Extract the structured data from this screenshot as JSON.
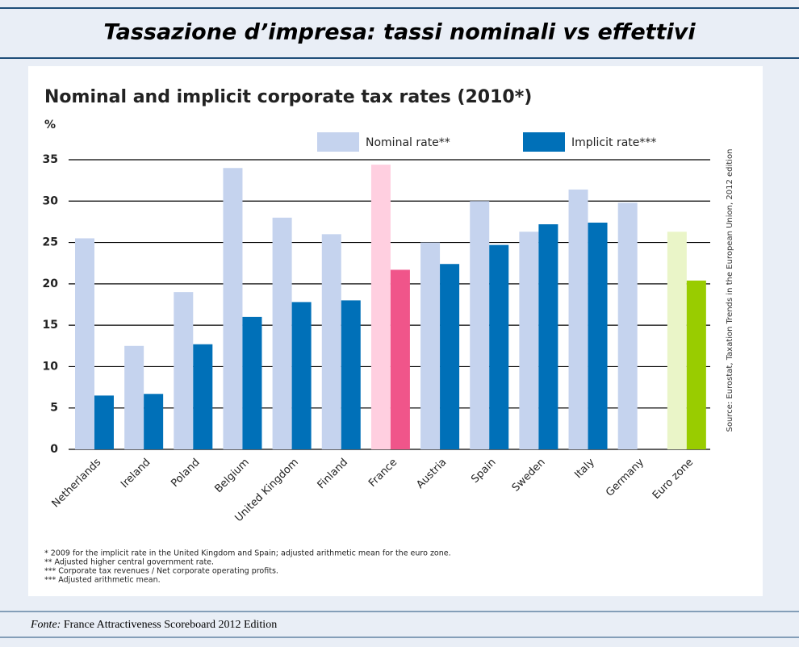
{
  "header": {
    "title": "Tassazione d’impresa: tassi nominali vs effettivi"
  },
  "footer": {
    "label": "Fonte:",
    "text": "France Attractiveness Scoreboard 2012 Edition"
  },
  "chart_data": {
    "type": "bar",
    "title": "Nominal and implicit corporate tax rates (2010*)",
    "y_label": "%",
    "source": "Source: Eurostat, Taxation Trends in the European Union, 2012 edition",
    "categories": [
      "Netherlands",
      "Ireland",
      "Poland",
      "Belgium",
      "United Kingdom",
      "Finland",
      "France",
      "Austria",
      "Spain",
      "Sweden",
      "Italy",
      "Germany",
      "Euro zone"
    ],
    "series": [
      {
        "name": "Nominal rate**",
        "color": "#c5d3ee",
        "colors": [
          "#c5d3ee",
          "#c5d3ee",
          "#c5d3ee",
          "#c5d3ee",
          "#c5d3ee",
          "#c5d3ee",
          "#ffcfe0",
          "#c5d3ee",
          "#c5d3ee",
          "#c5d3ee",
          "#c5d3ee",
          "#c5d3ee",
          "#eaf5c8"
        ],
        "values": [
          25.5,
          12.5,
          19,
          34,
          28,
          26,
          34.4,
          25,
          30,
          26.3,
          31.4,
          29.8,
          26.3
        ]
      },
      {
        "name": "Implicit rate***",
        "color": "#0070b8",
        "colors": [
          "#0070b8",
          "#0070b8",
          "#0070b8",
          "#0070b8",
          "#0070b8",
          "#0070b8",
          "#f0558a",
          "#0070b8",
          "#0070b8",
          "#0070b8",
          "#0070b8",
          "#0070b8",
          "#99cc00"
        ],
        "values": [
          6.5,
          6.7,
          12.7,
          16,
          17.8,
          18,
          21.7,
          22.4,
          24.7,
          27.2,
          27.4,
          null,
          20.4
        ]
      }
    ],
    "ylim": [
      0,
      35
    ],
    "yticks": [
      0,
      5,
      10,
      15,
      20,
      25,
      30,
      35
    ],
    "grid": true,
    "notes": [
      "* 2009 for the implicit rate in the United Kingdom and Spain; adjusted arithmetic mean for the euro zone.",
      "** Adjusted higher central government rate.",
      "*** Corporate tax revenues / Net corporate operating profits.",
      "*** Adjusted arithmetic mean."
    ]
  }
}
